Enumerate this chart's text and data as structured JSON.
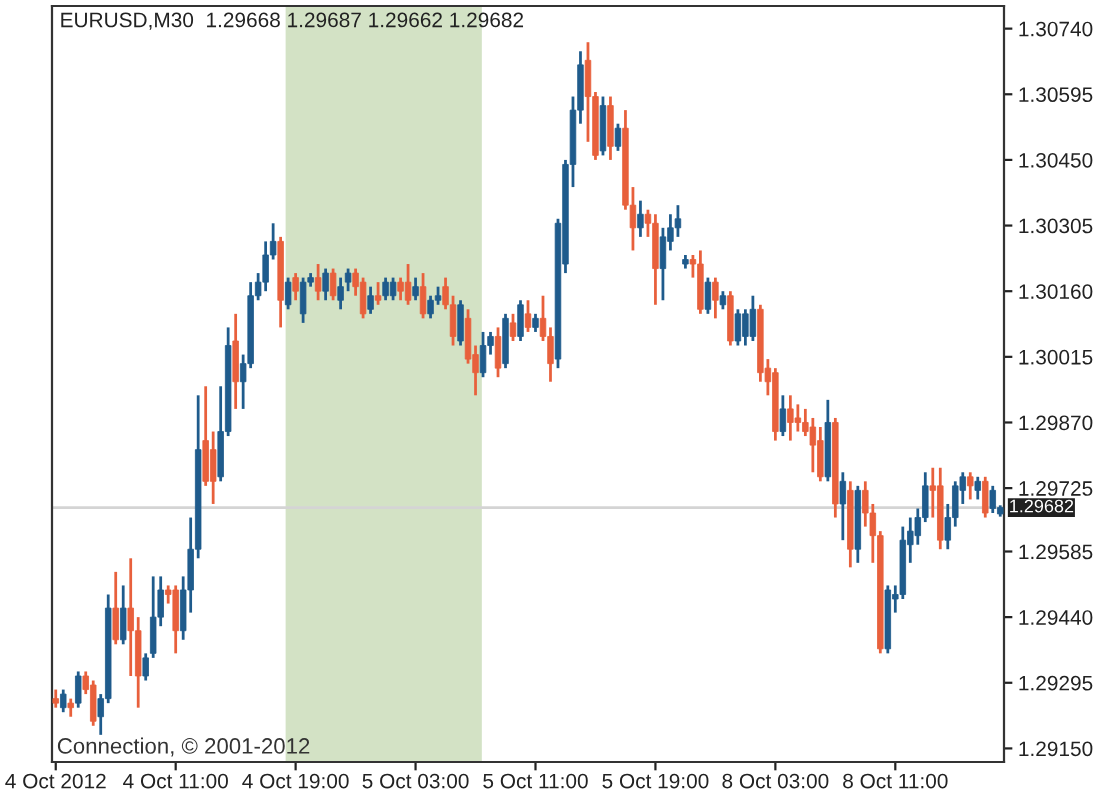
{
  "chart_data": {
    "type": "candlestick",
    "title": "EURUSD,M30  1.29668 1.29687 1.29662 1.29682",
    "annotations": [
      "Connection, © 2001-2012"
    ],
    "categories": [
      "4 Oct 2012",
      null,
      null,
      null,
      null,
      null,
      null,
      null,
      null,
      null,
      null,
      null,
      null,
      null,
      null,
      null,
      "4 Oct 11:00",
      null,
      null,
      null,
      null,
      null,
      null,
      null,
      null,
      null,
      null,
      null,
      null,
      null,
      null,
      null,
      "4 Oct 19:00",
      null,
      null,
      null,
      null,
      null,
      null,
      null,
      null,
      null,
      null,
      null,
      null,
      null,
      null,
      null,
      "5 Oct 03:00",
      null,
      null,
      null,
      null,
      null,
      null,
      null,
      null,
      null,
      null,
      null,
      null,
      null,
      null,
      null,
      "5 Oct 11:00",
      null,
      null,
      null,
      null,
      null,
      null,
      null,
      null,
      null,
      null,
      null,
      null,
      null,
      null,
      null,
      "5 Oct 19:00",
      null,
      null,
      null,
      null,
      null,
      null,
      null,
      null,
      null,
      null,
      null,
      null,
      null,
      null,
      null,
      "8 Oct 03:00",
      null,
      null,
      null,
      null,
      null,
      null,
      null,
      null,
      null,
      null,
      null,
      null,
      null,
      null,
      null,
      "8 Oct 11:00",
      null,
      null,
      null,
      null,
      null,
      null,
      null,
      null,
      null,
      null,
      null,
      null,
      null,
      null
    ],
    "ohlc": [
      [
        1.2926,
        1.2928,
        1.2924,
        1.2925
      ],
      [
        1.2924,
        1.2928,
        1.2923,
        1.2927
      ],
      [
        1.2925,
        1.2926,
        1.2922,
        1.2924
      ],
      [
        1.2925,
        1.2932,
        1.2924,
        1.2931
      ],
      [
        1.2931,
        1.2932,
        1.2927,
        1.2928
      ],
      [
        1.2929,
        1.293,
        1.292,
        1.2921
      ],
      [
        1.2922,
        1.2927,
        1.2918,
        1.2926
      ],
      [
        1.2926,
        1.2949,
        1.2925,
        1.2946
      ],
      [
        1.2946,
        1.2954,
        1.2938,
        1.2939
      ],
      [
        1.2939,
        1.2951,
        1.2938,
        1.2946
      ],
      [
        1.2946,
        1.2957,
        1.2931,
        1.2941
      ],
      [
        1.2941,
        1.2944,
        1.2924,
        1.2931
      ],
      [
        1.2931,
        1.2936,
        1.293,
        1.2935
      ],
      [
        1.2936,
        1.2953,
        1.2935,
        1.2944
      ],
      [
        1.2944,
        1.2953,
        1.2942,
        1.295
      ],
      [
        1.295,
        1.2951,
        1.2947,
        1.2949
      ],
      [
        1.295,
        1.2951,
        1.2936,
        1.2941
      ],
      [
        1.2941,
        1.2953,
        1.2939,
        1.295
      ],
      [
        1.295,
        1.2966,
        1.2945,
        1.2959
      ],
      [
        1.2959,
        1.2993,
        1.2957,
        1.2981
      ],
      [
        1.2983,
        1.2995,
        1.2973,
        1.2974
      ],
      [
        1.2981,
        1.2985,
        1.2969,
        1.2974
      ],
      [
        1.2975,
        1.2995,
        1.2974,
        1.2985
      ],
      [
        1.2985,
        1.3008,
        1.2984,
        1.3004
      ],
      [
        1.3005,
        1.3011,
        1.299,
        1.2996
      ],
      [
        1.2996,
        1.3002,
        1.299,
        1.3
      ],
      [
        1.3,
        1.3018,
        1.2999,
        1.3015
      ],
      [
        1.3015,
        1.302,
        1.3014,
        1.3018
      ],
      [
        1.3018,
        1.3027,
        1.3016,
        1.3024
      ],
      [
        1.3024,
        1.3031,
        1.3023,
        1.3027
      ],
      [
        1.3027,
        1.3028,
        1.3008,
        1.3014
      ],
      [
        1.3013,
        1.3019,
        1.3012,
        1.3018
      ],
      [
        1.3019,
        1.302,
        1.3014,
        1.3016
      ],
      [
        1.3011,
        1.3019,
        1.3009,
        1.3018
      ],
      [
        1.3018,
        1.302,
        1.3017,
        1.3019
      ],
      [
        1.3019,
        1.3022,
        1.3014,
        1.3016
      ],
      [
        1.3016,
        1.3021,
        1.3014,
        1.302
      ],
      [
        1.302,
        1.3021,
        1.3014,
        1.3015
      ],
      [
        1.3014,
        1.3019,
        1.3012,
        1.3017
      ],
      [
        1.3018,
        1.3021,
        1.3016,
        1.302
      ],
      [
        1.302,
        1.3021,
        1.3015,
        1.3017
      ],
      [
        1.3018,
        1.3019,
        1.301,
        1.3011
      ],
      [
        1.3012,
        1.3017,
        1.3011,
        1.3015
      ],
      [
        1.3015,
        1.3018,
        1.3013,
        1.3014
      ],
      [
        1.3015,
        1.3019,
        1.3014,
        1.3018
      ],
      [
        1.3015,
        1.3019,
        1.3014,
        1.3018
      ],
      [
        1.3018,
        1.3019,
        1.3014,
        1.3016
      ],
      [
        1.3018,
        1.3022,
        1.3013,
        1.3014
      ],
      [
        1.3015,
        1.3019,
        1.3014,
        1.3017
      ],
      [
        1.3017,
        1.302,
        1.301,
        1.3011
      ],
      [
        1.3011,
        1.3015,
        1.301,
        1.3014
      ],
      [
        1.3014,
        1.3017,
        1.3013,
        1.3015
      ],
      [
        1.3017,
        1.3019,
        1.3012,
        1.3013
      ],
      [
        1.3013,
        1.3015,
        1.3004,
        1.3006
      ],
      [
        1.3005,
        1.3014,
        1.3004,
        1.3013
      ],
      [
        1.301,
        1.3012,
        1.3,
        1.3001
      ],
      [
        1.3002,
        1.3004,
        1.2993,
        1.2998
      ],
      [
        1.2998,
        1.3007,
        1.2997,
        1.3004
      ],
      [
        1.3004,
        1.3007,
        1.3002,
        1.3006
      ],
      [
        1.3006,
        1.3008,
        1.2997,
        1.2999
      ],
      [
        1.3,
        1.3011,
        1.2999,
        1.301
      ],
      [
        1.3009,
        1.3011,
        1.3005,
        1.3006
      ],
      [
        1.3006,
        1.3014,
        1.3005,
        1.3013
      ],
      [
        1.3011,
        1.3014,
        1.3007,
        1.3008
      ],
      [
        1.3008,
        1.3011,
        1.3007,
        1.301
      ],
      [
        1.301,
        1.3015,
        1.3005,
        1.3006
      ],
      [
        1.3006,
        1.3008,
        1.2996,
        1.3
      ],
      [
        1.3001,
        1.3032,
        1.2999,
        1.3031
      ],
      [
        1.3022,
        1.3045,
        1.302,
        1.3044
      ],
      [
        1.3044,
        1.3059,
        1.3039,
        1.3056
      ],
      [
        1.3056,
        1.3069,
        1.3053,
        1.3066
      ],
      [
        1.3067,
        1.3071,
        1.3049,
        1.3059
      ],
      [
        1.3059,
        1.306,
        1.3045,
        1.3046
      ],
      [
        1.3047,
        1.3059,
        1.3046,
        1.3057
      ],
      [
        1.3057,
        1.3059,
        1.3045,
        1.3048
      ],
      [
        1.3048,
        1.3053,
        1.3047,
        1.3052
      ],
      [
        1.3052,
        1.3056,
        1.3034,
        1.3035
      ],
      [
        1.3035,
        1.3039,
        1.3025,
        1.303
      ],
      [
        1.303,
        1.3036,
        1.3028,
        1.3033
      ],
      [
        1.3033,
        1.3034,
        1.3028,
        1.3031
      ],
      [
        1.3031,
        1.3033,
        1.3013,
        1.3021
      ],
      [
        1.3021,
        1.303,
        1.3014,
        1.3028
      ],
      [
        1.3027,
        1.3033,
        1.3025,
        1.303
      ],
      [
        1.303,
        1.3035,
        1.3028,
        1.3032
      ],
      [
        1.3022,
        1.3024,
        1.3021,
        1.3023
      ],
      [
        1.3023,
        1.3024,
        1.3019,
        1.3022
      ],
      [
        1.3022,
        1.3025,
        1.3011,
        1.3012
      ],
      [
        1.3012,
        1.3019,
        1.3011,
        1.3018
      ],
      [
        1.3018,
        1.3019,
        1.301,
        1.3014
      ],
      [
        1.3013,
        1.3016,
        1.3012,
        1.3015
      ],
      [
        1.3015,
        1.3016,
        1.3004,
        1.3005
      ],
      [
        1.3005,
        1.3012,
        1.3004,
        1.3011
      ],
      [
        1.3006,
        1.3012,
        1.3004,
        1.3011
      ],
      [
        1.3006,
        1.3015,
        1.3005,
        1.3012
      ],
      [
        1.3012,
        1.3013,
        1.2996,
        1.2998
      ],
      [
        1.2999,
        1.3001,
        1.2993,
        1.2996
      ],
      [
        1.2998,
        1.2999,
        1.2983,
        1.2985
      ],
      [
        1.2985,
        1.2993,
        1.2984,
        1.299
      ],
      [
        1.299,
        1.2993,
        1.2983,
        1.2987
      ],
      [
        1.2988,
        1.2991,
        1.2985,
        1.2987
      ],
      [
        1.2987,
        1.299,
        1.2984,
        1.2985
      ],
      [
        1.2986,
        1.2988,
        1.2976,
        1.2982
      ],
      [
        1.2983,
        1.2986,
        1.2974,
        1.2975
      ],
      [
        1.2975,
        1.2992,
        1.2974,
        1.2987
      ],
      [
        1.2987,
        1.2988,
        1.2966,
        1.2969
      ],
      [
        1.2969,
        1.2976,
        1.2961,
        1.2974
      ],
      [
        1.2972,
        1.2974,
        1.2955,
        1.2959
      ],
      [
        1.2959,
        1.2973,
        1.2956,
        1.2972
      ],
      [
        1.2972,
        1.2974,
        1.2964,
        1.2967
      ],
      [
        1.2967,
        1.2969,
        1.2956,
        1.2962
      ],
      [
        1.2962,
        1.2963,
        1.2936,
        1.2937
      ],
      [
        1.2937,
        1.2951,
        1.2936,
        1.295
      ],
      [
        1.2948,
        1.2951,
        1.2945,
        1.2949
      ],
      [
        1.2949,
        1.2964,
        1.2948,
        1.2961
      ],
      [
        1.296,
        1.2966,
        1.2956,
        1.2963
      ],
      [
        1.2962,
        1.2968,
        1.296,
        1.2966
      ],
      [
        1.2966,
        1.2976,
        1.2965,
        1.2973
      ],
      [
        1.2973,
        1.2977,
        1.2966,
        1.2972
      ],
      [
        1.2973,
        1.2977,
        1.2959,
        1.2961
      ],
      [
        1.2961,
        1.2969,
        1.2959,
        1.2966
      ],
      [
        1.2966,
        1.2974,
        1.2964,
        1.2973
      ],
      [
        1.2972,
        1.2976,
        1.2969,
        1.2975
      ],
      [
        1.2975,
        1.2976,
        1.297,
        1.2973
      ],
      [
        1.2972,
        1.2975,
        1.297,
        1.2974
      ],
      [
        1.2974,
        1.2975,
        1.2966,
        1.2967
      ],
      [
        1.2968,
        1.2973,
        1.2967,
        1.2972
      ],
      [
        1.29668,
        1.29687,
        1.29662,
        1.29682
      ]
    ],
    "colors": [
      "#e8603c",
      "#1f5b8c",
      "#e8603c",
      "#1f5b8c",
      "#e8603c",
      "#e8603c",
      "#1f5b8c",
      "#1f5b8c",
      "#e8603c",
      "#1f5b8c",
      "#e8603c",
      "#e8603c",
      "#1f5b8c",
      "#1f5b8c",
      "#1f5b8c",
      "#e8603c",
      "#e8603c",
      "#1f5b8c",
      "#1f5b8c",
      "#1f5b8c",
      "#e8603c",
      "#e8603c",
      "#1f5b8c",
      "#1f5b8c",
      "#e8603c",
      "#1f5b8c",
      "#1f5b8c",
      "#1f5b8c",
      "#1f5b8c",
      "#1f5b8c",
      "#e8603c",
      "#1f5b8c",
      "#e8603c",
      "#1f5b8c",
      "#1f5b8c",
      "#e8603c",
      "#1f5b8c",
      "#e8603c",
      "#1f5b8c",
      "#1f5b8c",
      "#e8603c",
      "#e8603c",
      "#1f5b8c",
      "#e8603c",
      "#1f5b8c",
      "#1f5b8c",
      "#e8603c",
      "#e8603c",
      "#1f5b8c",
      "#e8603c",
      "#1f5b8c",
      "#1f5b8c",
      "#e8603c",
      "#e8603c",
      "#1f5b8c",
      "#e8603c",
      "#e8603c",
      "#1f5b8c",
      "#1f5b8c",
      "#e8603c",
      "#1f5b8c",
      "#e8603c",
      "#1f5b8c",
      "#e8603c",
      "#1f5b8c",
      "#e8603c",
      "#e8603c",
      "#1f5b8c",
      "#1f5b8c",
      "#1f5b8c",
      "#1f5b8c",
      "#e8603c",
      "#e8603c",
      "#1f5b8c",
      "#e8603c",
      "#1f5b8c",
      "#e8603c",
      "#e8603c",
      "#1f5b8c",
      "#e8603c",
      "#e8603c",
      "#1f5b8c",
      "#1f5b8c",
      "#1f5b8c",
      "#1f5b8c",
      "#e8603c",
      "#e8603c",
      "#1f5b8c",
      "#e8603c",
      "#1f5b8c",
      "#e8603c",
      "#1f5b8c",
      "#1f5b8c",
      "#1f5b8c",
      "#e8603c",
      "#e8603c",
      "#e8603c",
      "#1f5b8c",
      "#e8603c",
      "#e8603c",
      "#e8603c",
      "#e8603c",
      "#e8603c",
      "#1f5b8c",
      "#e8603c",
      "#1f5b8c",
      "#e8603c",
      "#1f5b8c",
      "#e8603c",
      "#e8603c",
      "#e8603c",
      "#1f5b8c",
      "#1f5b8c",
      "#1f5b8c",
      "#1f5b8c",
      "#1f5b8c",
      "#1f5b8c",
      "#e8603c",
      "#e8603c",
      "#1f5b8c",
      "#1f5b8c",
      "#1f5b8c",
      "#e8603c",
      "#1f5b8c",
      "#e8603c",
      "#1f5b8c",
      "#1f5b8c"
    ],
    "ylim": [
      1.2912,
      1.3079
    ],
    "yticks": [
      {
        "value": 1.3074,
        "label": "1.30740"
      },
      {
        "value": 1.30595,
        "label": "1.30595"
      },
      {
        "value": 1.3045,
        "label": "1.30450"
      },
      {
        "value": 1.30305,
        "label": "1.30305"
      },
      {
        "value": 1.3016,
        "label": "1.30160"
      },
      {
        "value": 1.30015,
        "label": "1.30015"
      },
      {
        "value": 1.2987,
        "label": "1.29870"
      },
      {
        "value": 1.29725,
        "label": "1.29725"
      },
      {
        "value": 1.29585,
        "label": "1.29585"
      },
      {
        "value": 1.2944,
        "label": "1.29440"
      },
      {
        "value": 1.29295,
        "label": "1.29295"
      },
      {
        "value": 1.2915,
        "label": "1.29150"
      }
    ],
    "ref_lines": [
      {
        "axis": "y",
        "value": 1.29682,
        "label": "1.29682",
        "color": "#d4d4d4"
      }
    ],
    "grid": false,
    "legend": false
  }
}
